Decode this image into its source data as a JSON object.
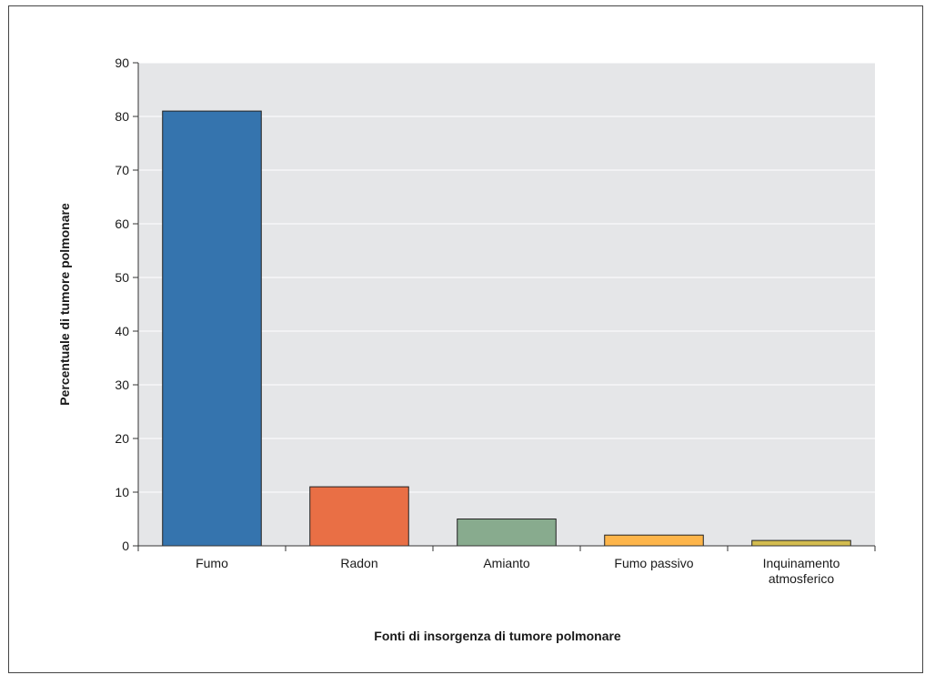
{
  "chart_data": {
    "type": "bar",
    "title": "",
    "xlabel": "Fonti di insorgenza di tumore polmonare",
    "ylabel": "Percentuale di tumore polmonare",
    "categories": [
      "Fumo",
      "Radon",
      "Amianto",
      "Fumo passivo",
      "Inquinamento\natmosferico"
    ],
    "values": [
      81,
      11,
      5,
      2,
      1
    ],
    "ylim": [
      0,
      90
    ],
    "yticks": [
      0,
      10,
      20,
      30,
      40,
      50,
      60,
      70,
      80,
      90
    ],
    "grid": true,
    "legend": "none",
    "colors": [
      "#3574ae",
      "#e96f45",
      "#88ab8e",
      "#fdb54a",
      "#d3bc4f"
    ],
    "plot_background": "#e5e6e8",
    "gridline_color": "#ffffff"
  }
}
